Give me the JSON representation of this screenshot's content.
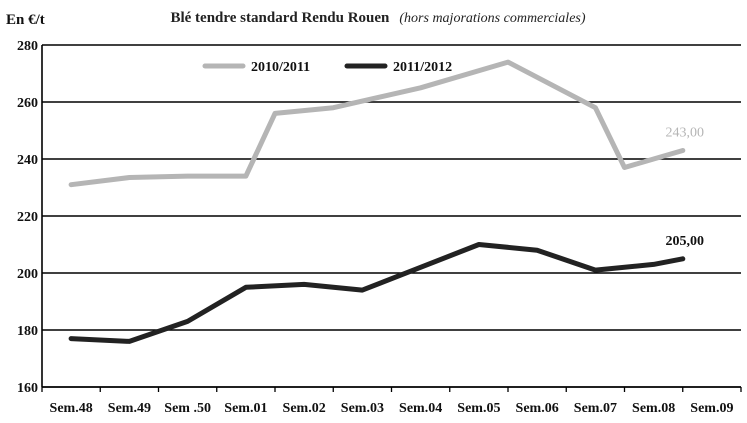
{
  "chart_data": {
    "type": "line",
    "title": "Blé tendre standard Rendu Rouen",
    "subtitle": "(hors majorations commerciales)",
    "ylabel": "En €/t",
    "xlabel": "",
    "ylim": [
      160,
      280
    ],
    "yticks": [
      160,
      180,
      200,
      220,
      240,
      260,
      280
    ],
    "grid": true,
    "legend_position": "top-center",
    "categories": [
      "Sem.48",
      "Sem.49",
      "Sem .50",
      "Sem.01",
      "Sem.02",
      "Sem.03",
      "Sem.04",
      "Sem.05",
      "Sem.06",
      "Sem.07",
      "Sem.08",
      "Sem.09"
    ],
    "x": [
      0,
      1,
      2,
      3,
      3.2,
      4,
      5,
      6,
      7,
      7.5,
      8,
      9,
      10,
      11
    ],
    "series": [
      {
        "name": "2010/2011",
        "color": "#b5b5b5",
        "points": [
          [
            0,
            231
          ],
          [
            1,
            233.5
          ],
          [
            2,
            234
          ],
          [
            3,
            234
          ],
          [
            3.5,
            256
          ],
          [
            4.5,
            258
          ],
          [
            6,
            265
          ],
          [
            7.5,
            274
          ],
          [
            9,
            258
          ],
          [
            9.5,
            237
          ],
          [
            10,
            240
          ],
          [
            10.5,
            243
          ]
        ]
      },
      {
        "name": "2011/2012",
        "color": "#222222",
        "points": [
          [
            0,
            177
          ],
          [
            1,
            176
          ],
          [
            2,
            183
          ],
          [
            3,
            195
          ],
          [
            4,
            196
          ],
          [
            5,
            194
          ],
          [
            6,
            202
          ],
          [
            7,
            210
          ],
          [
            8,
            208
          ],
          [
            9,
            201
          ],
          [
            10,
            203
          ],
          [
            10.5,
            205
          ]
        ]
      }
    ],
    "annotations": [
      {
        "text": "243,00",
        "series": "2010/2011",
        "x": 10.5,
        "y": 243,
        "color": "#b5b5b5"
      },
      {
        "text": "205,00",
        "series": "2011/2012",
        "x": 10.5,
        "y": 205,
        "color": "#111111"
      }
    ]
  }
}
